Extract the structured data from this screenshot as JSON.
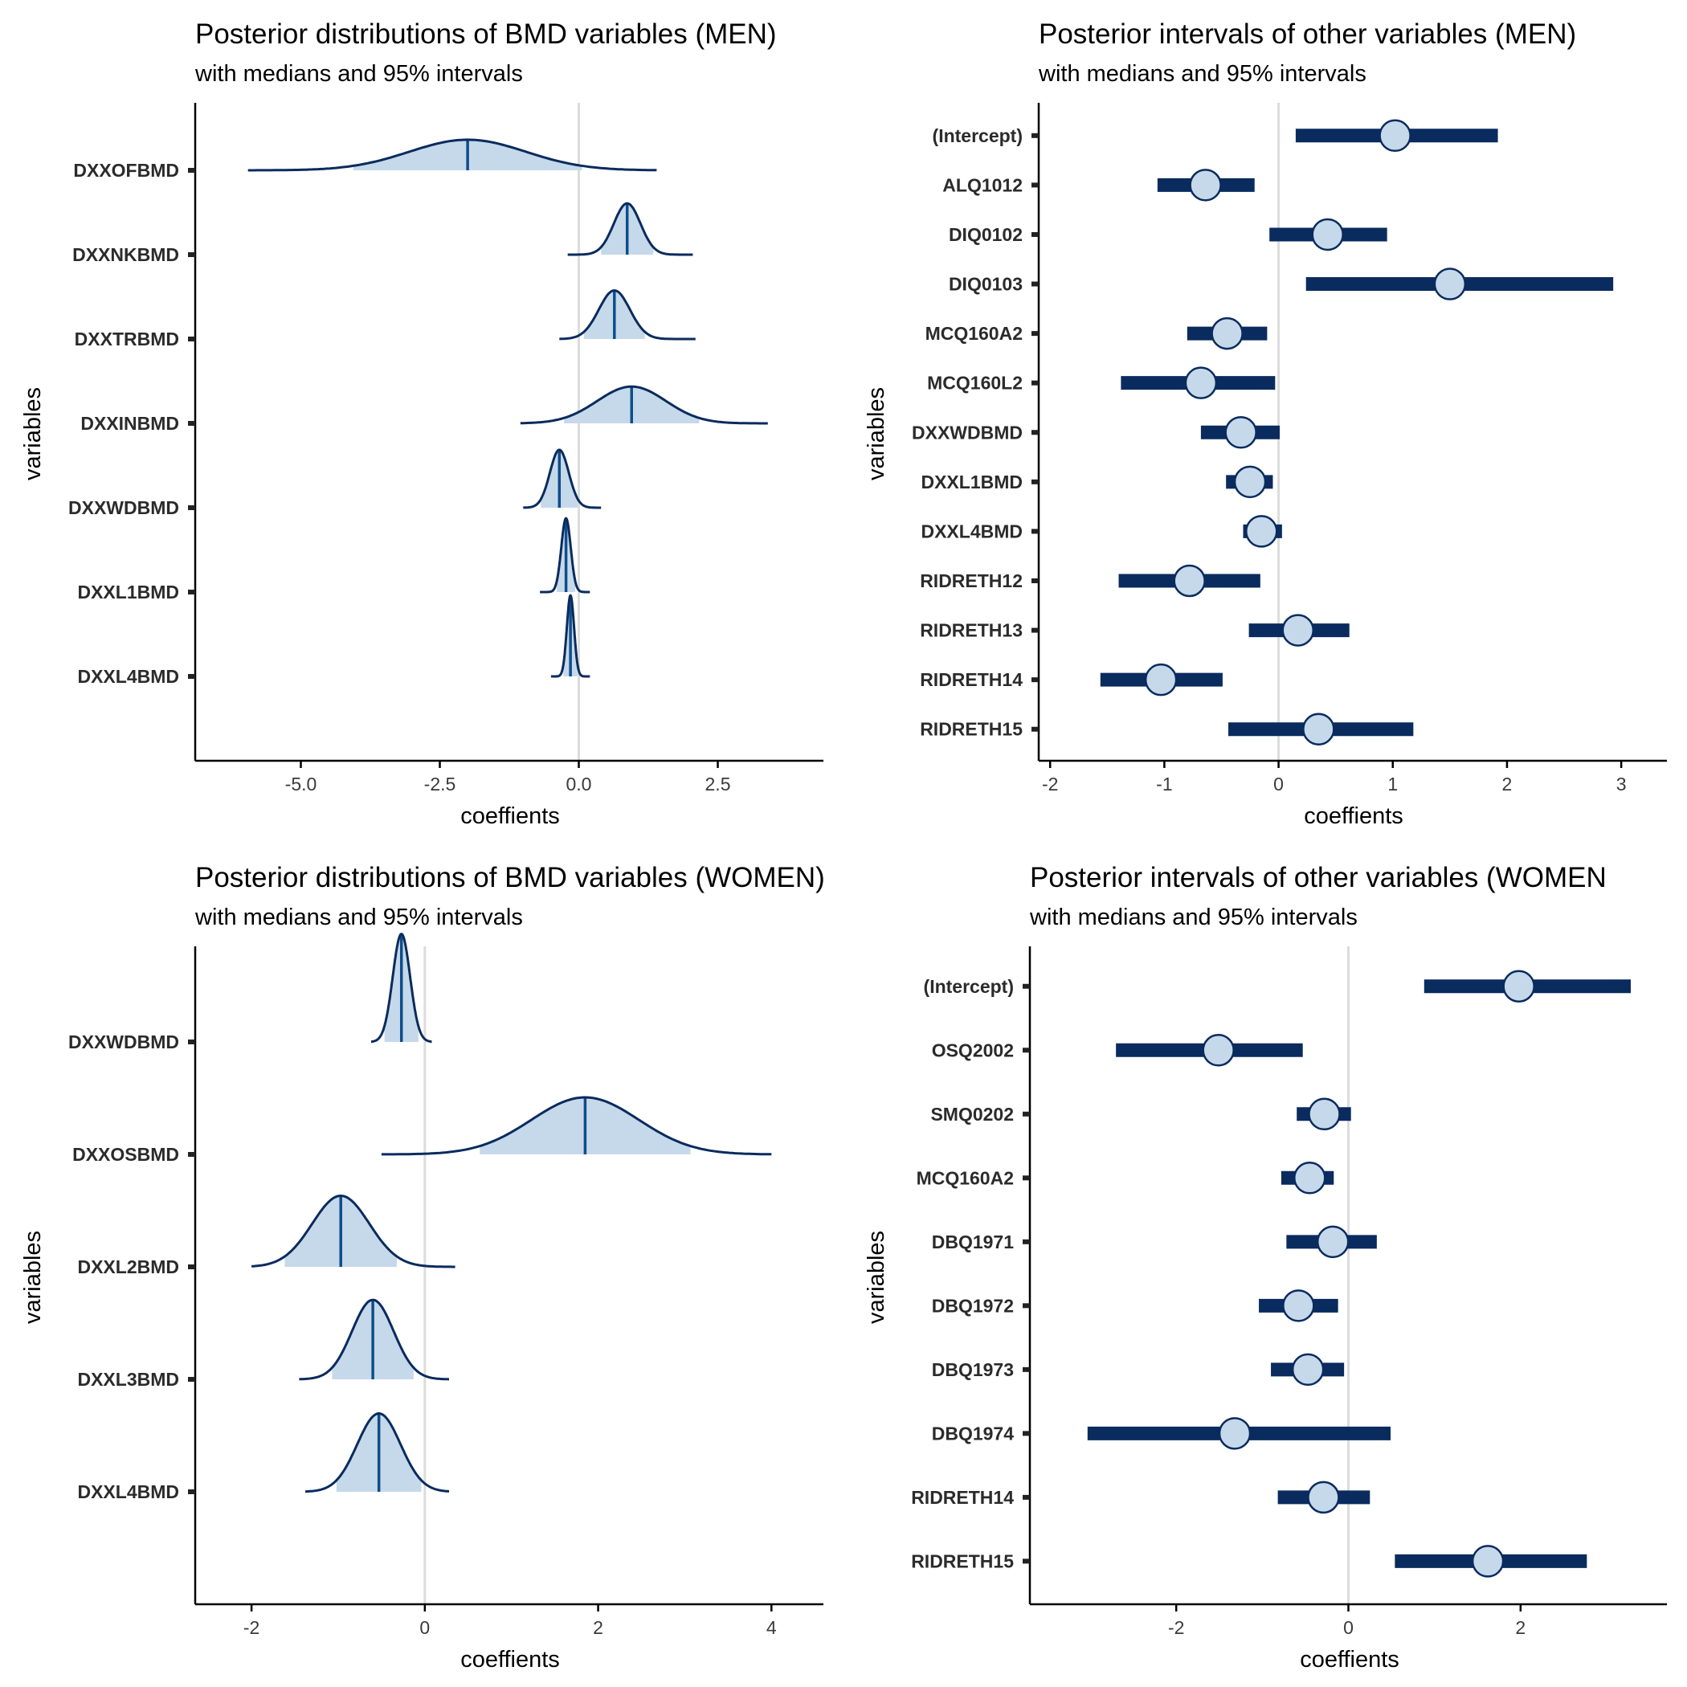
{
  "colors": {
    "dark": "#0a2b5e",
    "fill": "#c6d9ea",
    "median": "#0f4d8a",
    "zero": "#dcdcdc",
    "axis": "#000000"
  },
  "chart_data": [
    {
      "type": "ridgeline",
      "title": "Posterior distributions of BMD variables (MEN)",
      "subtitle": "with medians and 95% intervals",
      "xlabel": "coeffients",
      "ylabel": "variables",
      "xlim": [
        -6.9,
        4.4
      ],
      "ylim": [
        0.0,
        7.8
      ],
      "xticks": [
        -5.0,
        -2.5,
        0.0,
        2.5
      ],
      "xtick_labels": [
        "-5.0",
        "-2.5",
        "0.0",
        "2.5"
      ],
      "categories": [
        "DXXOFBMD",
        "DXXNKBMD",
        "DXXTRBMD",
        "DXXINBMD",
        "DXXWDBMD",
        "DXXL1BMD",
        "DXXL4BMD"
      ],
      "series": [
        {
          "name": "DXXOFBMD",
          "median": -2.0,
          "sd": 1.05,
          "min": -5.95,
          "max": 1.4
        },
        {
          "name": "DXXNKBMD",
          "median": 0.87,
          "sd": 0.24,
          "min": -0.2,
          "max": 2.05
        },
        {
          "name": "DXXTRBMD",
          "median": 0.64,
          "sd": 0.28,
          "min": -0.35,
          "max": 2.1
        },
        {
          "name": "DXXINBMD",
          "median": 0.95,
          "sd": 0.62,
          "min": -1.05,
          "max": 3.4
        },
        {
          "name": "DXXWDBMD",
          "median": -0.35,
          "sd": 0.17,
          "min": -1.0,
          "max": 0.4
        },
        {
          "name": "DXXL1BMD",
          "median": -0.23,
          "sd": 0.085,
          "min": -0.7,
          "max": 0.2
        },
        {
          "name": "DXXL4BMD",
          "median": -0.15,
          "sd": 0.065,
          "min": -0.5,
          "max": 0.2
        }
      ]
    },
    {
      "type": "interval",
      "title": "Posterior intervals of other variables (MEN)",
      "subtitle": "with medians and 95% intervals",
      "xlabel": "coeffients",
      "ylabel": "variables",
      "xlim": [
        -2.1,
        3.4
      ],
      "xticks": [
        -2,
        -1,
        0,
        1,
        2,
        3
      ],
      "xtick_labels": [
        "-2",
        "-1",
        "0",
        "1",
        "2",
        "3"
      ],
      "categories": [
        "(Intercept)",
        "ALQ1012",
        "DIQ0102",
        "DIQ0103",
        "MCQ160A2",
        "MCQ160L2",
        "DXXWDBMD",
        "DXXL1BMD",
        "DXXL4BMD",
        "RIDRETH12",
        "RIDRETH13",
        "RIDRETH14",
        "RIDRETH15"
      ],
      "series": [
        {
          "name": "(Intercept)",
          "median": 1.02,
          "low": 0.15,
          "high": 1.92
        },
        {
          "name": "ALQ1012",
          "median": -0.64,
          "low": -1.06,
          "high": -0.21
        },
        {
          "name": "DIQ0102",
          "median": 0.43,
          "low": -0.08,
          "high": 0.95
        },
        {
          "name": "DIQ0103",
          "median": 1.5,
          "low": 0.24,
          "high": 2.93
        },
        {
          "name": "MCQ160A2",
          "median": -0.45,
          "low": -0.8,
          "high": -0.1
        },
        {
          "name": "MCQ160L2",
          "median": -0.68,
          "low": -1.38,
          "high": -0.03
        },
        {
          "name": "DXXWDBMD",
          "median": -0.33,
          "low": -0.68,
          "high": 0.01
        },
        {
          "name": "DXXL1BMD",
          "median": -0.25,
          "low": -0.46,
          "high": -0.05
        },
        {
          "name": "DXXL4BMD",
          "median": -0.15,
          "low": -0.31,
          "high": 0.03
        },
        {
          "name": "RIDRETH12",
          "median": -0.78,
          "low": -1.4,
          "high": -0.16
        },
        {
          "name": "RIDRETH13",
          "median": 0.17,
          "low": -0.26,
          "high": 0.62
        },
        {
          "name": "RIDRETH14",
          "median": -1.03,
          "low": -1.56,
          "high": -0.49
        },
        {
          "name": "RIDRETH15",
          "median": 0.35,
          "low": -0.44,
          "high": 1.18
        }
      ]
    },
    {
      "type": "ridgeline",
      "title": "Posterior distributions of BMD variables (WOMEN)",
      "subtitle": "with medians and 95% intervals",
      "xlabel": "coeffients",
      "ylabel": "variables",
      "xlim": [
        -2.65,
        4.6
      ],
      "ylim": [
        0.0,
        5.85
      ],
      "xticks": [
        -2,
        0,
        2,
        4
      ],
      "xtick_labels": [
        "-2",
        "0",
        "2",
        "4"
      ],
      "categories": [
        "DXXWDBMD",
        "DXXOSBMD",
        "DXXL2BMD",
        "DXXL3BMD",
        "DXXL4BMD"
      ],
      "series": [
        {
          "name": "DXXWDBMD",
          "median": -0.27,
          "sd": 0.1,
          "min": -0.62,
          "max": 0.08
        },
        {
          "name": "DXXOSBMD",
          "median": 1.85,
          "sd": 0.62,
          "min": -0.5,
          "max": 4.0
        },
        {
          "name": "DXXL2BMD",
          "median": -0.97,
          "sd": 0.33,
          "min": -2.0,
          "max": 0.35
        },
        {
          "name": "DXXL3BMD",
          "median": -0.6,
          "sd": 0.24,
          "min": -1.45,
          "max": 0.28
        },
        {
          "name": "DXXL4BMD",
          "median": -0.53,
          "sd": 0.25,
          "min": -1.38,
          "max": 0.28
        }
      ]
    },
    {
      "type": "interval",
      "title": "Posterior intervals of other variables (WOMEN",
      "subtitle": "with medians and 95% intervals",
      "xlabel": "coeffients",
      "ylabel": "variables",
      "xlim": [
        -3.7,
        3.7
      ],
      "xticks": [
        -2,
        0,
        2
      ],
      "xtick_labels": [
        "-2",
        "0",
        "2"
      ],
      "categories": [
        "(Intercept)",
        "OSQ2002",
        "SMQ0202",
        "MCQ160A2",
        "DBQ1971",
        "DBQ1972",
        "DBQ1973",
        "DBQ1974",
        "RIDRETH14",
        "RIDRETH15"
      ],
      "series": [
        {
          "name": "(Intercept)",
          "median": 1.98,
          "low": 0.88,
          "high": 3.28
        },
        {
          "name": "OSQ2002",
          "median": -1.51,
          "low": -2.7,
          "high": -0.53
        },
        {
          "name": "SMQ0202",
          "median": -0.28,
          "low": -0.6,
          "high": 0.03
        },
        {
          "name": "MCQ160A2",
          "median": -0.45,
          "low": -0.78,
          "high": -0.17
        },
        {
          "name": "DBQ1971",
          "median": -0.18,
          "low": -0.72,
          "high": 0.33
        },
        {
          "name": "DBQ1972",
          "median": -0.58,
          "low": -1.04,
          "high": -0.12
        },
        {
          "name": "DBQ1973",
          "median": -0.47,
          "low": -0.9,
          "high": -0.05
        },
        {
          "name": "DBQ1974",
          "median": -1.32,
          "low": -3.03,
          "high": 0.49
        },
        {
          "name": "RIDRETH14",
          "median": -0.29,
          "low": -0.82,
          "high": 0.25
        },
        {
          "name": "RIDRETH15",
          "median": 1.62,
          "low": 0.54,
          "high": 2.77
        }
      ]
    }
  ]
}
